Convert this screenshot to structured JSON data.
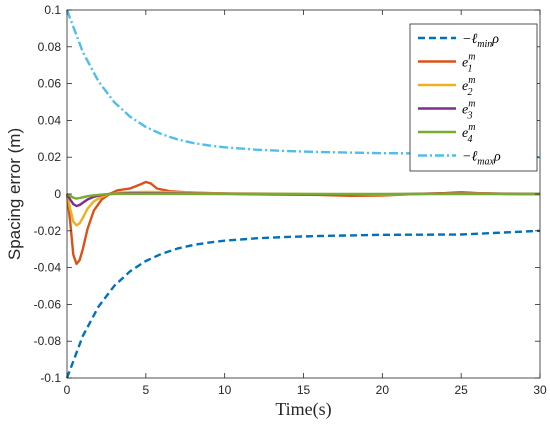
{
  "chart_data": {
    "type": "line",
    "title": "",
    "xlabel": "Time(s)",
    "ylabel": "Spacing error (m)",
    "xlim": [
      0,
      30
    ],
    "ylim": [
      -0.1,
      0.1
    ],
    "xticks": [
      "0",
      "5",
      "10",
      "15",
      "20",
      "25",
      "30"
    ],
    "yticks": [
      "-0.1",
      "-0.08",
      "-0.06",
      "-0.04",
      "-0.02",
      "0",
      "0.02",
      "0.04",
      "0.06",
      "0.08",
      "0.1"
    ],
    "grid": false,
    "legend_position": "top-right",
    "series": [
      {
        "name": "−ℓminρ",
        "color": "#0072BD",
        "style": "dashed",
        "x": [
          0,
          1,
          2,
          3,
          4,
          5,
          6,
          7,
          8,
          9,
          10,
          12,
          14,
          16,
          18,
          20,
          22,
          25,
          30
        ],
        "y": [
          -0.1,
          -0.0772,
          -0.0612,
          -0.0499,
          -0.042,
          -0.0364,
          -0.0325,
          -0.0297,
          -0.0277,
          -0.0264,
          -0.0254,
          -0.0241,
          -0.0233,
          -0.0228,
          -0.0225,
          -0.0222,
          -0.0221,
          -0.022,
          -0.02
        ]
      },
      {
        "name": "e1m",
        "color": "#D95319",
        "style": "solid",
        "x": [
          0,
          0.2,
          0.4,
          0.6,
          0.8,
          1.0,
          1.3,
          1.7,
          2.2,
          2.7,
          3.2,
          4.0,
          4.6,
          5.0,
          5.3,
          5.7,
          6.5,
          7.5,
          9,
          11,
          13,
          16,
          18,
          20,
          22,
          24,
          25,
          26,
          28,
          30
        ],
        "y": [
          0,
          -0.015,
          -0.033,
          -0.038,
          -0.036,
          -0.03,
          -0.019,
          -0.009,
          -0.003,
          0.0,
          0.002,
          0.003,
          0.005,
          0.0065,
          0.0058,
          0.003,
          0.0015,
          0.001,
          0.0005,
          0.0,
          -0.0003,
          -0.0005,
          -0.001,
          -0.0008,
          0.0,
          0.0005,
          0.001,
          0.0005,
          0.0,
          0.0
        ]
      },
      {
        "name": "e2m",
        "color": "#EDB120",
        "style": "solid",
        "x": [
          0,
          0.2,
          0.4,
          0.6,
          0.8,
          1.0,
          1.3,
          1.7,
          2.2,
          2.7,
          3.5,
          5,
          7,
          10,
          15,
          20,
          25,
          30
        ],
        "y": [
          0,
          -0.008,
          -0.015,
          -0.017,
          -0.016,
          -0.013,
          -0.008,
          -0.004,
          -0.0015,
          0.0,
          0.0008,
          0.0012,
          0.0008,
          0.0003,
          0.0,
          -0.0005,
          0.0005,
          0.0
        ]
      },
      {
        "name": "e3m",
        "color": "#7E2F8E",
        "style": "solid",
        "x": [
          0,
          0.2,
          0.4,
          0.6,
          0.8,
          1.0,
          1.3,
          1.7,
          2.2,
          2.7,
          3.5,
          5,
          8,
          12,
          18,
          25,
          30
        ],
        "y": [
          0,
          -0.003,
          -0.0055,
          -0.0065,
          -0.006,
          -0.0048,
          -0.003,
          -0.0015,
          -0.0005,
          0.0,
          0.0003,
          0.0004,
          0.0002,
          0.0,
          -0.0002,
          0.0002,
          0.0
        ]
      },
      {
        "name": "e4m",
        "color": "#77AC30",
        "style": "solid",
        "x": [
          0,
          0.2,
          0.4,
          0.6,
          0.8,
          1.0,
          1.3,
          1.7,
          2.2,
          2.7,
          3.5,
          5,
          10,
          20,
          30
        ],
        "y": [
          0,
          -0.001,
          -0.002,
          -0.0025,
          -0.0022,
          -0.0018,
          -0.0012,
          -0.0007,
          -0.0003,
          0.0,
          0.0001,
          0.0001,
          0.0,
          0.0,
          0.0
        ]
      },
      {
        "name": "−ℓmaxρ",
        "color": "#4DBEEE",
        "style": "dashdot",
        "x": [
          0,
          1,
          2,
          3,
          4,
          5,
          6,
          7,
          8,
          9,
          10,
          12,
          14,
          16,
          18,
          20,
          22,
          25,
          30
        ],
        "y": [
          0.1,
          0.0772,
          0.0612,
          0.0499,
          0.042,
          0.0364,
          0.0325,
          0.0297,
          0.0277,
          0.0264,
          0.0254,
          0.0241,
          0.0233,
          0.0228,
          0.0225,
          0.0222,
          0.0221,
          0.022,
          0.02
        ]
      }
    ],
    "legend": [
      {
        "base": "−ℓ",
        "sub": "min",
        "sup": "",
        "tail": "ρ"
      },
      {
        "base": "e",
        "sub": "1",
        "sup": "m",
        "tail": ""
      },
      {
        "base": "e",
        "sub": "2",
        "sup": "m",
        "tail": ""
      },
      {
        "base": "e",
        "sub": "3",
        "sup": "m",
        "tail": ""
      },
      {
        "base": "e",
        "sub": "4",
        "sup": "m",
        "tail": ""
      },
      {
        "base": "−ℓ",
        "sub": "max",
        "sup": "",
        "tail": "ρ"
      }
    ]
  }
}
